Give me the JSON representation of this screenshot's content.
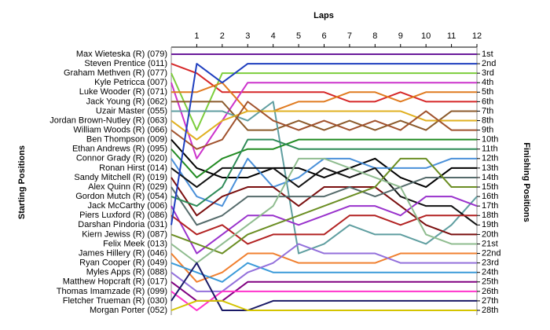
{
  "chart_data": {
    "type": "bump",
    "x_label": "Laps",
    "y_label": "Starting Positions",
    "y2_label": "Finishing Positions",
    "x": [
      0,
      1,
      2,
      3,
      4,
      5,
      6,
      7,
      8,
      9,
      10,
      11,
      12
    ],
    "xlim": [
      0,
      12
    ],
    "xticks": [
      1,
      2,
      3,
      4,
      5,
      6,
      7,
      8,
      9,
      10,
      11,
      12
    ],
    "ylim": [
      28,
      1
    ],
    "yticks": [
      {
        "value": 1,
        "label": "1st"
      },
      {
        "value": 2,
        "label": "2nd"
      },
      {
        "value": 3,
        "label": "3rd"
      },
      {
        "value": 4,
        "label": "4th"
      },
      {
        "value": 5,
        "label": "5th"
      },
      {
        "value": 6,
        "label": "6th"
      },
      {
        "value": 7,
        "label": "7th"
      },
      {
        "value": 8,
        "label": "8th"
      },
      {
        "value": 9,
        "label": "9th"
      },
      {
        "value": 10,
        "label": "10th"
      },
      {
        "value": 11,
        "label": "11th"
      },
      {
        "value": 12,
        "label": "12th"
      },
      {
        "value": 13,
        "label": "13th"
      },
      {
        "value": 14,
        "label": "14th"
      },
      {
        "value": 15,
        "label": "15th"
      },
      {
        "value": 16,
        "label": "16th"
      },
      {
        "value": 17,
        "label": "17th"
      },
      {
        "value": 18,
        "label": "18th"
      },
      {
        "value": 19,
        "label": "19th"
      },
      {
        "value": 20,
        "label": "20th"
      },
      {
        "value": 21,
        "label": "21st"
      },
      {
        "value": 22,
        "label": "22nd"
      },
      {
        "value": 23,
        "label": "23rd"
      },
      {
        "value": 24,
        "label": "24th"
      },
      {
        "value": 25,
        "label": "25th"
      },
      {
        "value": 26,
        "label": "26th"
      },
      {
        "value": 27,
        "label": "27th"
      },
      {
        "value": 28,
        "label": "28th"
      }
    ],
    "series": [
      {
        "name": "Max Wieteska (R) (079)",
        "color": "#6a1b9a",
        "values": [
          1,
          1,
          1,
          1,
          1,
          1,
          1,
          1,
          1,
          1,
          1,
          1,
          1
        ]
      },
      {
        "name": "Steven Prentice (011)",
        "color": "#d62728",
        "values": [
          2,
          3,
          5,
          5,
          5,
          5,
          5,
          6,
          6,
          5,
          6,
          6,
          6
        ]
      },
      {
        "name": "Graham Methven (R) (077)",
        "color": "#7ccd3c",
        "values": [
          3,
          9,
          3,
          3,
          3,
          3,
          3,
          3,
          3,
          3,
          3,
          3,
          3
        ]
      },
      {
        "name": "Kyle Petricca (007)",
        "color": "#cc33cc",
        "values": [
          4,
          12,
          8,
          4,
          4,
          4,
          4,
          4,
          4,
          4,
          4,
          4,
          4
        ]
      },
      {
        "name": "Luke Wooder (R) (071)",
        "color": "#e07b20",
        "values": [
          5,
          5,
          4,
          7,
          7,
          6,
          6,
          5,
          5,
          6,
          5,
          5,
          5
        ]
      },
      {
        "name": "Jack Young (R) (062)",
        "color": "#8b5a2b",
        "values": [
          6,
          6,
          6,
          9,
          9,
          8,
          9,
          8,
          9,
          8,
          9,
          7,
          7
        ]
      },
      {
        "name": "Uzair Master (055)",
        "color": "#5f9ea0",
        "values": [
          7,
          7,
          7,
          8,
          6,
          22,
          21,
          19,
          20,
          20,
          21,
          19,
          16
        ]
      },
      {
        "name": "Jordan Brown-Nutley (R) (063)",
        "color": "#e0b020",
        "values": [
          8,
          10,
          8,
          7,
          7,
          7,
          7,
          7,
          7,
          7,
          8,
          8,
          8
        ]
      },
      {
        "name": "William Woods (R) (066)",
        "color": "#a0522d",
        "values": [
          9,
          11,
          10,
          6,
          8,
          9,
          8,
          9,
          8,
          9,
          7,
          9,
          9
        ]
      },
      {
        "name": "Ben Thompson (009)",
        "color": "#000000",
        "values": [
          10,
          13,
          14,
          14,
          13,
          13,
          14,
          13,
          12,
          14,
          15,
          13,
          13
        ]
      },
      {
        "name": "Ethan Andrews (R) (095)",
        "color": "#228b22",
        "values": [
          11,
          14,
          12,
          11,
          11,
          10,
          10,
          10,
          10,
          10,
          10,
          10,
          10
        ]
      },
      {
        "name": "Connor Grady (R) (020)",
        "color": "#4a90d9",
        "values": [
          12,
          16,
          17,
          12,
          15,
          14,
          12,
          12,
          13,
          13,
          13,
          12,
          12
        ]
      },
      {
        "name": "Ronan Hirst (014)",
        "color": "#111111",
        "values": [
          13,
          15,
          13,
          13,
          13,
          15,
          13,
          14,
          13,
          16,
          17,
          17,
          19
        ]
      },
      {
        "name": "Sandy Mitchell (R) (019)",
        "color": "#7a0f0f",
        "values": [
          14,
          18,
          16,
          15,
          15,
          17,
          15,
          15,
          15,
          17,
          19,
          20,
          20
        ]
      },
      {
        "name": "Alex Quinn (R) (029)",
        "color": "#556b6b",
        "values": [
          15,
          19,
          18,
          16,
          16,
          16,
          16,
          15,
          16,
          15,
          14,
          14,
          14
        ]
      },
      {
        "name": "Gordon Mutch (R) (054)",
        "color": "#2e8b57",
        "values": [
          16,
          17,
          15,
          10,
          10,
          11,
          11,
          11,
          11,
          11,
          11,
          11,
          11
        ]
      },
      {
        "name": "Jack McCarthy (006)",
        "color": "#9932cc",
        "values": [
          17,
          22,
          20,
          18,
          18,
          19,
          18,
          17,
          17,
          18,
          16,
          16,
          17
        ]
      },
      {
        "name": "Piers Luxford (R) (086)",
        "color": "#b22222",
        "values": [
          18,
          20,
          19,
          21,
          20,
          20,
          20,
          18,
          18,
          19,
          18,
          18,
          18
        ]
      },
      {
        "name": "Darshan Pindoria (031)",
        "color": "#1f3fbf",
        "values": [
          19,
          2,
          4,
          2,
          2,
          2,
          2,
          2,
          2,
          2,
          2,
          2,
          2
        ]
      },
      {
        "name": "Kiern Jewiss (R) (087)",
        "color": "#6b8e23",
        "values": [
          20,
          21,
          22,
          20,
          19,
          18,
          17,
          16,
          15,
          12,
          12,
          15,
          15
        ]
      },
      {
        "name": "Felix Meek (013)",
        "color": "#8fbc8f",
        "values": [
          21,
          23,
          21,
          19,
          17,
          12,
          12,
          13,
          14,
          15,
          20,
          21,
          21
        ]
      },
      {
        "name": "James Hillery (R) (046)",
        "color": "#f08030",
        "values": [
          22,
          25,
          24,
          22,
          22,
          23,
          23,
          23,
          23,
          22,
          22,
          22,
          22
        ]
      },
      {
        "name": "Ryan Cooper (R) (049)",
        "color": "#3a9ad9",
        "values": [
          23,
          24,
          25,
          23,
          24,
          24,
          24,
          24,
          24,
          24,
          24,
          24,
          24
        ]
      },
      {
        "name": "Myles Apps (R) (088)",
        "color": "#9370db",
        "values": [
          24,
          26,
          26,
          24,
          23,
          21,
          22,
          22,
          22,
          23,
          23,
          23,
          23
        ]
      },
      {
        "name": "Matthew Hopcraft (R) (017)",
        "color": "#800080",
        "values": [
          25,
          27,
          27,
          25,
          25,
          25,
          25,
          25,
          25,
          25,
          25,
          25,
          25
        ]
      },
      {
        "name": "Thomas Imamzade (R) (099)",
        "color": "#ff33cc",
        "values": [
          26,
          28,
          26,
          26,
          26,
          26,
          26,
          26,
          26,
          26,
          26,
          26,
          26
        ]
      },
      {
        "name": "Fletcher Trueman (R) (030)",
        "color": "#1a1a66",
        "values": [
          27,
          23,
          28,
          28,
          27,
          27,
          27,
          27,
          27,
          27,
          27,
          27,
          27
        ]
      },
      {
        "name": "Morgan Porter (052)",
        "color": "#d4c400",
        "values": [
          28,
          27,
          27,
          28,
          28,
          28,
          28,
          28,
          28,
          28,
          28,
          28,
          28
        ]
      }
    ]
  }
}
